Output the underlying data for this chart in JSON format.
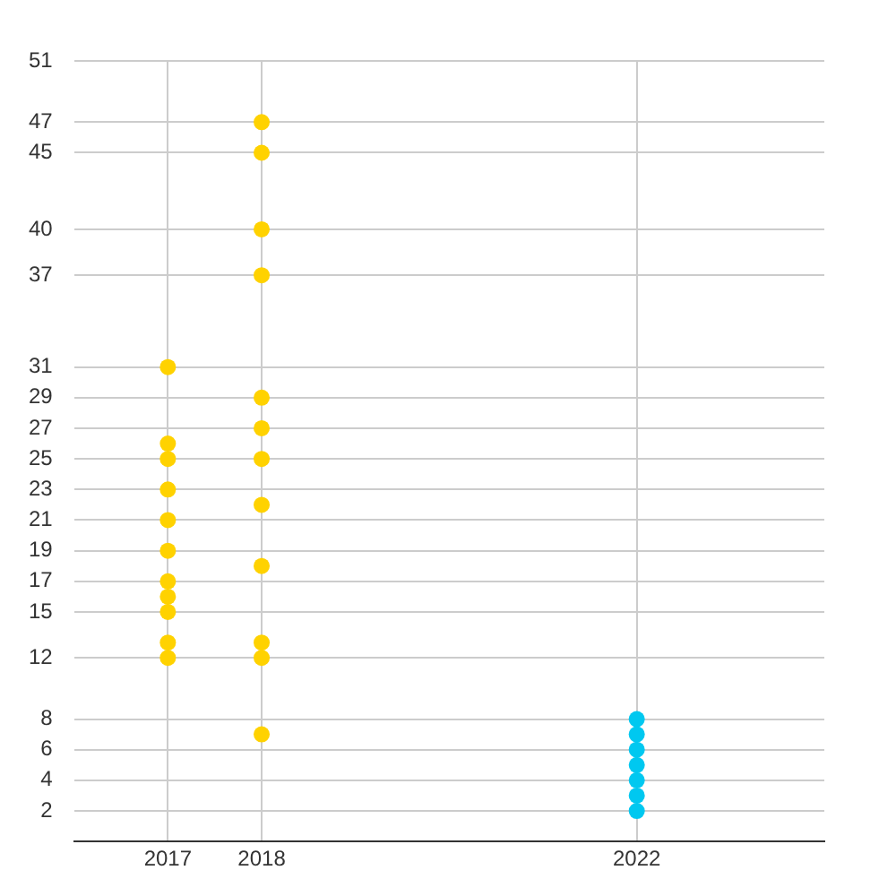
{
  "chart_data": {
    "type": "scatter",
    "xlim": [
      2016,
      2024
    ],
    "xticks": [
      2017,
      2018,
      2022
    ],
    "ylim": [
      0,
      51
    ],
    "yticks": [
      2,
      4,
      6,
      8,
      12,
      15,
      17,
      19,
      21,
      23,
      25,
      27,
      29,
      31,
      37,
      40,
      45,
      47,
      51
    ],
    "grid": true,
    "legend": false,
    "marker": "circle",
    "series": [
      {
        "color": "#ffd200",
        "x": [
          2017,
          2017,
          2017,
          2017,
          2017,
          2017,
          2017,
          2017,
          2017,
          2017,
          2017,
          2018,
          2018,
          2018,
          2018,
          2018,
          2018,
          2018,
          2018,
          2018,
          2018,
          2018,
          2018
        ],
        "values": [
          31,
          26,
          25,
          23,
          21,
          19,
          17,
          16,
          15,
          13,
          12,
          47,
          45,
          40,
          37,
          29,
          27,
          25,
          22,
          18,
          13,
          12,
          7
        ]
      },
      {
        "color": "#00c8f0",
        "x": [
          2022,
          2022,
          2022,
          2022,
          2022,
          2022,
          2022
        ],
        "values": [
          8,
          7,
          6,
          5,
          4,
          3,
          2
        ]
      }
    ]
  }
}
